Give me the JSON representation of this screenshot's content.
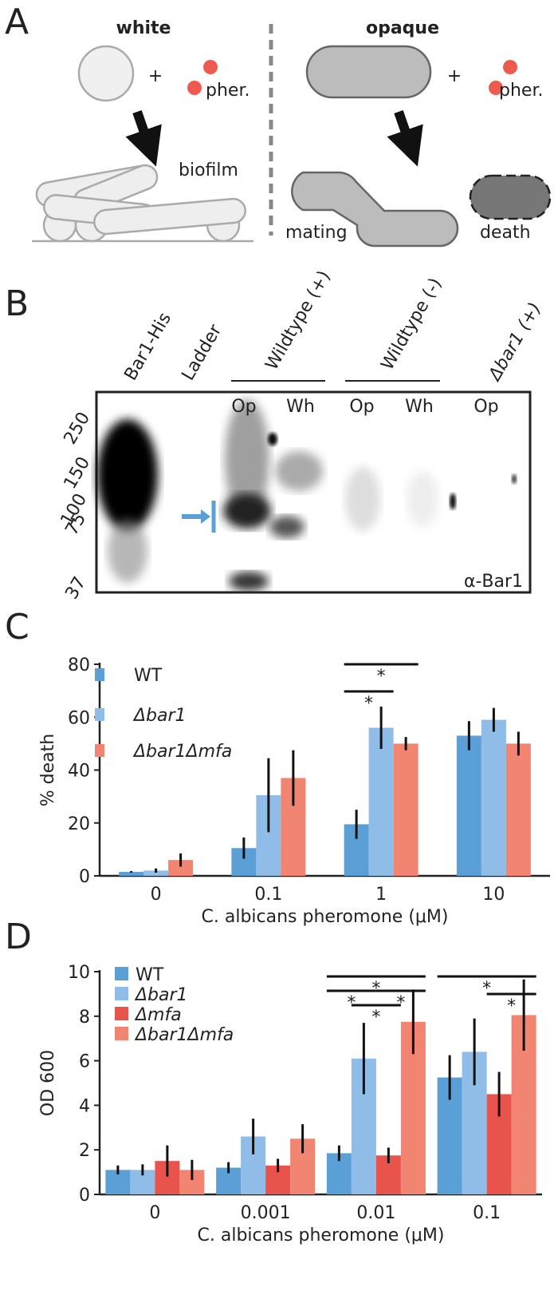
{
  "panel_a": {
    "label": "A",
    "white_label": "white",
    "opaque_label": "opaque",
    "plus_signs": [
      "+",
      "+"
    ],
    "pheromone_labels": [
      "pher.",
      "pher."
    ],
    "biofilm": "biofilm",
    "mating": "mating",
    "death": "death"
  },
  "panel_b": {
    "label": "B",
    "lanes": [
      "Bar1-His",
      "Ladder",
      "Wildtype (+)",
      "Wildtype (-)",
      "Δbar1 (+)"
    ],
    "wells": [
      "Op",
      "Wh",
      "Op",
      "Wh",
      "Op"
    ],
    "markers": [
      "250",
      "150",
      "100",
      "75",
      "37"
    ],
    "antibody": "α-Bar1"
  },
  "chart_data": [
    {
      "type": "bar",
      "label": "C",
      "categories": [
        "0",
        "0.1",
        "1",
        "10"
      ],
      "x_label": "C. albicans pheromone (μM)",
      "y_label": "% death",
      "ylim": [
        0,
        80
      ],
      "yticks": [
        0,
        20,
        40,
        60,
        80
      ],
      "series": [
        {
          "name": "WT",
          "color": "#5a9fd6",
          "values": [
            1.5,
            10.5,
            19.5,
            53
          ],
          "errors": [
            0.3,
            4,
            5.5,
            5.5
          ]
        },
        {
          "name": "Δbar1",
          "color": "#8fbde8",
          "values": [
            2,
            30.5,
            56,
            59
          ],
          "errors": [
            0.8,
            14,
            8,
            4.5
          ]
        },
        {
          "name": "Δbar1Δmfa",
          "color": "#f28472",
          "values": [
            6,
            37,
            50,
            50
          ],
          "errors": [
            2.5,
            10.5,
            2.5,
            4.5
          ]
        }
      ],
      "annotations": [
        "*",
        "*"
      ]
    },
    {
      "type": "bar",
      "label": "D",
      "categories": [
        "0",
        "0.001",
        "0.01",
        "0.1"
      ],
      "x_label": "C. albicans pheromone (μM)",
      "y_label": "OD 600",
      "ylim": [
        0,
        10
      ],
      "yticks": [
        0,
        2,
        4,
        6,
        8,
        10
      ],
      "series": [
        {
          "name": "WT",
          "color": "#5a9fd6",
          "values": [
            1.1,
            1.2,
            1.85,
            5.25
          ],
          "errors": [
            0.2,
            0.25,
            0.35,
            1.0
          ]
        },
        {
          "name": "Δbar1",
          "color": "#8fbde8",
          "values": [
            1.1,
            2.6,
            6.1,
            6.4
          ],
          "errors": [
            0.25,
            0.8,
            1.6,
            1.5
          ]
        },
        {
          "name": "Δmfa",
          "color": "#e8534c",
          "values": [
            1.5,
            1.3,
            1.75,
            4.5
          ],
          "errors": [
            0.7,
            0.3,
            0.35,
            1.0
          ]
        },
        {
          "name": "Δbar1Δmfa",
          "color": "#f28472",
          "values": [
            1.1,
            2.5,
            7.75,
            8.05
          ],
          "errors": [
            0.45,
            0.65,
            1.45,
            1.6
          ]
        }
      ],
      "annotations": [
        "*",
        "*",
        "*",
        "*",
        "*",
        "*"
      ]
    }
  ]
}
